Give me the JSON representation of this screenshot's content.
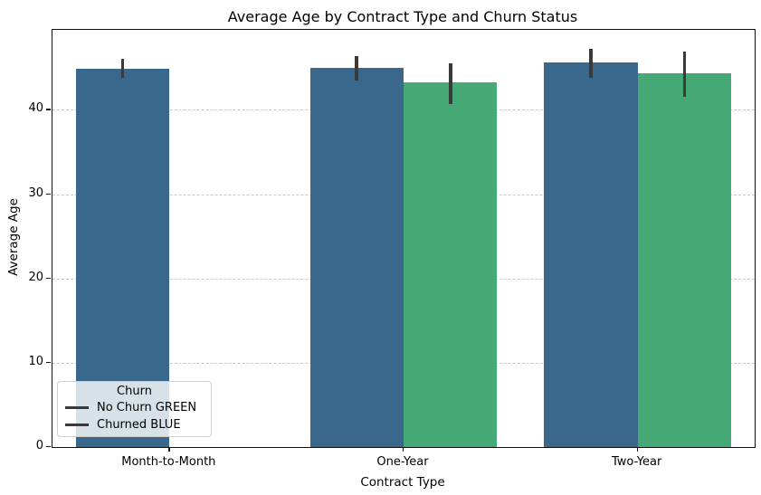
{
  "figure": {
    "title": "Average Age by Contract Type and Churn Status"
  },
  "chart_data": {
    "type": "bar",
    "title": "Average Age by Contract Type and Churn Status",
    "xlabel": "Contract Type",
    "ylabel": "Average Age",
    "categories": [
      "Month-to-Month",
      "One-Year",
      "Two-Year"
    ],
    "series": [
      {
        "name": "No Churn GREEN",
        "color": "#39688c",
        "values": [
          44.9,
          45.0,
          45.6
        ],
        "error_intervals": [
          [
            43.8,
            46.1
          ],
          [
            43.5,
            46.4
          ],
          [
            43.8,
            47.2
          ]
        ]
      },
      {
        "name": "Churned BLUE",
        "color": "#46a875",
        "values": [
          null,
          43.3,
          44.3
        ],
        "error_intervals": [
          null,
          [
            40.7,
            45.5
          ],
          [
            41.5,
            46.9
          ]
        ]
      }
    ],
    "ylim": [
      0,
      49.5
    ],
    "yticks": [
      0,
      10,
      20,
      30,
      40
    ],
    "grid": "horizontal-dashed",
    "group_width_fraction": 0.8,
    "bar_width_fraction": 0.4,
    "errorbar_color": "#3a3a3a",
    "legend": {
      "title": "Churn",
      "position": "lower-left",
      "handle_color": "#3a3a3a",
      "entries": [
        "No Churn GREEN",
        "Churned BLUE"
      ]
    }
  }
}
